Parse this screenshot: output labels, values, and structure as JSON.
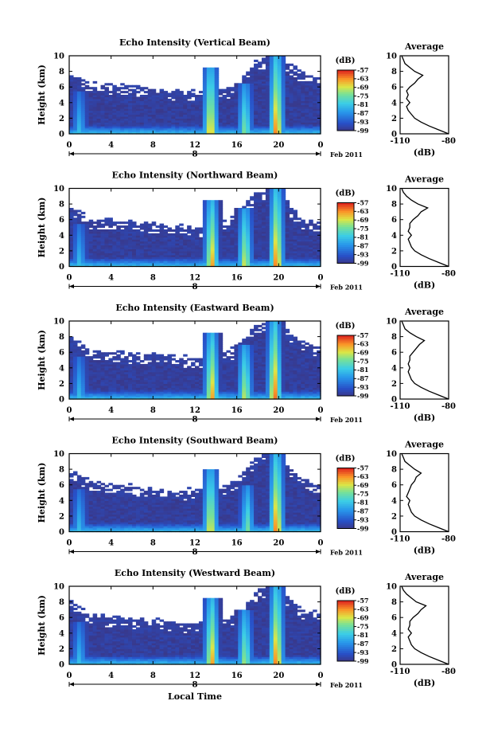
{
  "figure": {
    "xlabel": "Local Time",
    "date_label": "Feb 2011",
    "day_marker": "8",
    "colorbar_unit": "(dB)",
    "colorbar_ticks": [
      "-57",
      "-63",
      "-69",
      "-75",
      "-81",
      "-87",
      "-93",
      "-99"
    ],
    "avg_title": "Average",
    "avg_xlabel": "(dB)",
    "colors": {
      "background": "#ffffff",
      "floor": "#39388a",
      "axis": "#000000"
    }
  },
  "chart_data": [
    {
      "type": "heatmap",
      "title": "Echo Intensity (Vertical Beam)",
      "ylabel": "Height (km)",
      "xlim": [
        0,
        24
      ],
      "ylim": [
        0,
        10
      ],
      "x_ticks": [
        "0",
        "4",
        "8",
        "12",
        "16",
        "20",
        "0"
      ],
      "y_ticks": [
        "0",
        "2",
        "4",
        "6",
        "8",
        "10"
      ],
      "color_scale": [
        -99,
        -57
      ],
      "features": [
        {
          "kind": "cloud_top",
          "hours": [
            0,
            2,
            4,
            6,
            8,
            10,
            12,
            14,
            16,
            18,
            20,
            22,
            24
          ],
          "top_km": [
            7.5,
            6.5,
            6.3,
            6.0,
            5.8,
            5.5,
            5.3,
            5.4,
            6.0,
            9.5,
            9.7,
            8.0,
            7.0
          ]
        },
        {
          "kind": "echo_column",
          "center_hour": 13.5,
          "top_km": 8.5,
          "peak_db": -60
        },
        {
          "kind": "echo_column",
          "center_hour": 16.8,
          "top_km": 6.5,
          "peak_db": -70
        },
        {
          "kind": "echo_column",
          "center_hour": 19.8,
          "top_km": 10.0,
          "peak_db": -57
        },
        {
          "kind": "echo_column",
          "center_hour": 1.0,
          "top_km": 5.5,
          "peak_db": -80
        }
      ],
      "average_profile": {
        "xlim": [
          -110,
          -80
        ],
        "x_ticks": [
          "-110",
          "-80"
        ],
        "height_km": [
          0,
          0.5,
          1,
          1.5,
          2,
          2.5,
          3,
          3.5,
          4,
          4.5,
          5,
          5.5,
          6,
          6.5,
          7,
          7.5,
          8,
          8.5,
          9,
          9.5,
          10
        ],
        "db": [
          -80,
          -86,
          -92,
          -97,
          -101,
          -103,
          -105,
          -106,
          -104,
          -106,
          -105,
          -106,
          -104,
          -101,
          -99,
          -96,
          -101,
          -104,
          -107,
          -108,
          -109
        ]
      }
    },
    {
      "type": "heatmap",
      "title": "Echo Intensity (Northward Beam)",
      "ylabel": "Height (km)",
      "xlim": [
        0,
        24
      ],
      "ylim": [
        0,
        10
      ],
      "x_ticks": [
        "0",
        "4",
        "8",
        "12",
        "16",
        "20",
        "0"
      ],
      "y_ticks": [
        "0",
        "2",
        "4",
        "6",
        "8",
        "10"
      ],
      "color_scale": [
        -99,
        -57
      ],
      "features": [
        {
          "kind": "cloud_top",
          "hours": [
            0,
            2,
            4,
            6,
            8,
            10,
            12,
            14,
            16,
            18,
            20,
            22,
            24
          ],
          "top_km": [
            8.0,
            6.0,
            5.8,
            5.6,
            5.5,
            5.2,
            5.0,
            5.2,
            6.5,
            9.6,
            9.8,
            6.0,
            5.5
          ]
        },
        {
          "kind": "echo_column",
          "center_hour": 13.6,
          "top_km": 8.5,
          "peak_db": -60
        },
        {
          "kind": "echo_column",
          "center_hour": 16.8,
          "top_km": 7.5,
          "peak_db": -65
        },
        {
          "kind": "echo_column",
          "center_hour": 19.8,
          "top_km": 10.0,
          "peak_db": -57
        },
        {
          "kind": "echo_column",
          "center_hour": 1.0,
          "top_km": 5.5,
          "peak_db": -80
        }
      ],
      "average_profile": {
        "xlim": [
          -110,
          -80
        ],
        "x_ticks": [
          "-110",
          "-80"
        ],
        "height_km": [
          0,
          0.5,
          1,
          1.5,
          2,
          2.5,
          3,
          3.5,
          4,
          4.5,
          5,
          5.5,
          6,
          6.5,
          7,
          7.5,
          8,
          8.5,
          9,
          9.5,
          10
        ],
        "db": [
          -80,
          -86,
          -92,
          -97,
          -101,
          -103,
          -104,
          -105,
          -103,
          -105,
          -104,
          -104,
          -102,
          -99,
          -97,
          -93,
          -99,
          -103,
          -106,
          -108,
          -109
        ]
      }
    },
    {
      "type": "heatmap",
      "title": "Echo Intensity (Eastward Beam)",
      "ylabel": "Height (km)",
      "xlim": [
        0,
        24
      ],
      "ylim": [
        0,
        10
      ],
      "x_ticks": [
        "0",
        "4",
        "8",
        "12",
        "16",
        "20",
        "0"
      ],
      "y_ticks": [
        "0",
        "2",
        "4",
        "6",
        "8",
        "10"
      ],
      "color_scale": [
        -99,
        -57
      ],
      "features": [
        {
          "kind": "cloud_top",
          "hours": [
            0,
            2,
            4,
            6,
            8,
            10,
            12,
            14,
            16,
            18,
            20,
            22,
            24
          ],
          "top_km": [
            8.0,
            6.2,
            6.0,
            5.8,
            5.7,
            5.4,
            5.2,
            5.5,
            6.5,
            9.7,
            9.8,
            7.5,
            6.5
          ]
        },
        {
          "kind": "echo_column",
          "center_hour": 13.6,
          "top_km": 8.5,
          "peak_db": -60
        },
        {
          "kind": "echo_column",
          "center_hour": 16.8,
          "top_km": 7.0,
          "peak_db": -66
        },
        {
          "kind": "echo_column",
          "center_hour": 19.6,
          "top_km": 10.0,
          "peak_db": -57
        },
        {
          "kind": "echo_column",
          "center_hour": 1.0,
          "top_km": 5.5,
          "peak_db": -80
        }
      ],
      "average_profile": {
        "xlim": [
          -110,
          -80
        ],
        "x_ticks": [
          "-110",
          "-80"
        ],
        "height_km": [
          0,
          0.5,
          1,
          1.5,
          2,
          2.5,
          3,
          3.5,
          4,
          4.5,
          5,
          5.5,
          6,
          6.5,
          7,
          7.5,
          8,
          8.5,
          9,
          9.5,
          10
        ],
        "db": [
          -80,
          -86,
          -92,
          -97,
          -101,
          -103,
          -104,
          -105,
          -104,
          -105,
          -104,
          -104,
          -102,
          -100,
          -98,
          -95,
          -100,
          -104,
          -107,
          -108,
          -109
        ]
      }
    },
    {
      "type": "heatmap",
      "title": "Echo Intensity (Southward Beam)",
      "ylabel": "Height (km)",
      "xlim": [
        0,
        24
      ],
      "ylim": [
        0,
        10
      ],
      "x_ticks": [
        "0",
        "4",
        "8",
        "12",
        "16",
        "20",
        "0"
      ],
      "y_ticks": [
        "0",
        "2",
        "4",
        "6",
        "8",
        "10"
      ],
      "color_scale": [
        -99,
        -57
      ],
      "features": [
        {
          "kind": "cloud_top",
          "hours": [
            0,
            2,
            4,
            6,
            8,
            10,
            12,
            14,
            16,
            18,
            20,
            22,
            24
          ],
          "top_km": [
            7.8,
            6.5,
            6.0,
            5.8,
            5.6,
            5.4,
            5.2,
            5.3,
            6.5,
            9.6,
            9.8,
            7.0,
            6.0
          ]
        },
        {
          "kind": "echo_column",
          "center_hour": 13.5,
          "top_km": 8.0,
          "peak_db": -62
        },
        {
          "kind": "echo_column",
          "center_hour": 17.0,
          "top_km": 6.0,
          "peak_db": -72
        },
        {
          "kind": "echo_column",
          "center_hour": 19.8,
          "top_km": 10.0,
          "peak_db": -57
        },
        {
          "kind": "echo_column",
          "center_hour": 1.0,
          "top_km": 5.5,
          "peak_db": -80
        }
      ],
      "average_profile": {
        "xlim": [
          -110,
          -80
        ],
        "x_ticks": [
          "-110",
          "-80"
        ],
        "height_km": [
          0,
          0.5,
          1,
          1.5,
          2,
          2.5,
          3,
          3.5,
          4,
          4.5,
          5,
          5.5,
          6,
          6.5,
          7,
          7.5,
          8,
          8.5,
          9,
          9.5,
          10
        ],
        "db": [
          -80,
          -86,
          -92,
          -97,
          -101,
          -103,
          -104,
          -105,
          -104,
          -106,
          -105,
          -104,
          -103,
          -101,
          -100,
          -97,
          -101,
          -104,
          -107,
          -108,
          -109
        ]
      }
    },
    {
      "type": "heatmap",
      "title": "Echo Intensity (Westward Beam)",
      "ylabel": "Height (km)",
      "xlim": [
        0,
        24
      ],
      "ylim": [
        0,
        10
      ],
      "x_ticks": [
        "0",
        "4",
        "8",
        "12",
        "16",
        "20",
        "0"
      ],
      "y_ticks": [
        "0",
        "2",
        "4",
        "6",
        "8",
        "10"
      ],
      "color_scale": [
        -99,
        -57
      ],
      "features": [
        {
          "kind": "cloud_top",
          "hours": [
            0,
            2,
            4,
            6,
            8,
            10,
            12,
            14,
            16,
            18,
            20,
            22,
            24
          ],
          "top_km": [
            8.0,
            6.3,
            6.0,
            5.8,
            5.6,
            5.3,
            5.2,
            5.4,
            6.2,
            9.6,
            9.8,
            7.0,
            6.5
          ]
        },
        {
          "kind": "echo_column",
          "center_hour": 13.6,
          "top_km": 8.5,
          "peak_db": -60
        },
        {
          "kind": "echo_column",
          "center_hour": 16.8,
          "top_km": 7.0,
          "peak_db": -68
        },
        {
          "kind": "echo_column",
          "center_hour": 19.8,
          "top_km": 10.0,
          "peak_db": -57
        },
        {
          "kind": "echo_column",
          "center_hour": 1.0,
          "top_km": 5.5,
          "peak_db": -80
        }
      ],
      "average_profile": {
        "xlim": [
          -110,
          -80
        ],
        "x_ticks": [
          "-110",
          "-80"
        ],
        "height_km": [
          0,
          0.5,
          1,
          1.5,
          2,
          2.5,
          3,
          3.5,
          4,
          4.5,
          5,
          5.5,
          6,
          6.5,
          7,
          7.5,
          8,
          8.5,
          9,
          9.5,
          10
        ],
        "db": [
          -80,
          -86,
          -92,
          -97,
          -101,
          -103,
          -104,
          -105,
          -103,
          -105,
          -104,
          -104,
          -102,
          -99,
          -97,
          -94,
          -100,
          -103,
          -106,
          -108,
          -109
        ]
      }
    }
  ]
}
